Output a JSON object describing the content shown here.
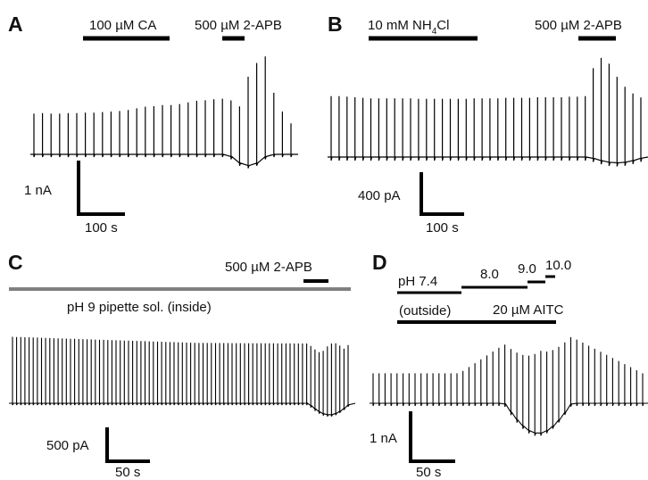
{
  "chart_data": [
    {
      "type": "line",
      "panel": "A",
      "annotations": {
        "bar1_label": "100 µM CA",
        "bar2_label": "500 µM 2-APB",
        "scale_y_label": "1 nA",
        "scale_x_label": "100 s"
      },
      "peaks_nA": [
        0.76,
        0.77,
        0.76,
        0.76,
        0.77,
        0.77,
        0.78,
        0.78,
        0.79,
        0.8,
        0.81,
        0.83,
        0.86,
        0.89,
        0.9,
        0.92,
        0.92,
        0.94,
        0.97,
        1.0,
        1.01,
        1.03,
        1.04,
        1.05,
        1.06,
        1.66,
        1.87,
        1.87,
        1.15,
        0.8,
        0.58
      ],
      "dip_nA": -0.21
    },
    {
      "type": "line",
      "panel": "B",
      "annotations": {
        "bar1_label_main": "10 mM NH",
        "bar1_label_sub": "4",
        "bar1_label_end": "Cl",
        "bar2_label": "500 µM 2-APB",
        "scale_y_label": "400 pA",
        "scale_x_label": "100 s"
      },
      "peaks_pA": [
        580,
        580,
        575,
        570,
        565,
        560,
        560,
        560,
        560,
        560,
        560,
        555,
        555,
        555,
        555,
        555,
        555,
        555,
        560,
        560,
        560,
        560,
        565,
        565,
        565,
        565,
        570,
        570,
        570,
        570,
        575,
        575,
        580,
        860,
        980,
        940,
        820,
        720,
        640,
        580
      ],
      "dip_pA": -55
    },
    {
      "type": "line",
      "panel": "C",
      "annotations": {
        "gray_bar_label": "pH 9 pipette sol. (inside)",
        "bar_label": "500 µM 2-APB",
        "scale_y_label": "500 pA",
        "scale_x_label": "50 s"
      },
      "trace_summary": {
        "spikes": 82,
        "baseline_peak_pA": 980,
        "mid_peak_pA": 890,
        "late_peak_pA": 880,
        "apb_peak_pA": 1050,
        "dip_pA": -170
      }
    },
    {
      "type": "line",
      "panel": "D",
      "annotations": {
        "ph_labels": [
          "pH 7.4",
          "8.0",
          "9.0",
          "10.0"
        ],
        "outside_label": "(outside)",
        "aitc_label": "20 µM AITC",
        "scale_y_label": "1 nA",
        "scale_x_label": "50 s"
      },
      "trace_summary": {
        "spikes": 46,
        "baseline_peak_nA": 0.6,
        "max_peak_nA": 1.65,
        "dip_nA": -0.6
      }
    }
  ],
  "panel_labels": [
    "A",
    "B",
    "C",
    "D"
  ]
}
